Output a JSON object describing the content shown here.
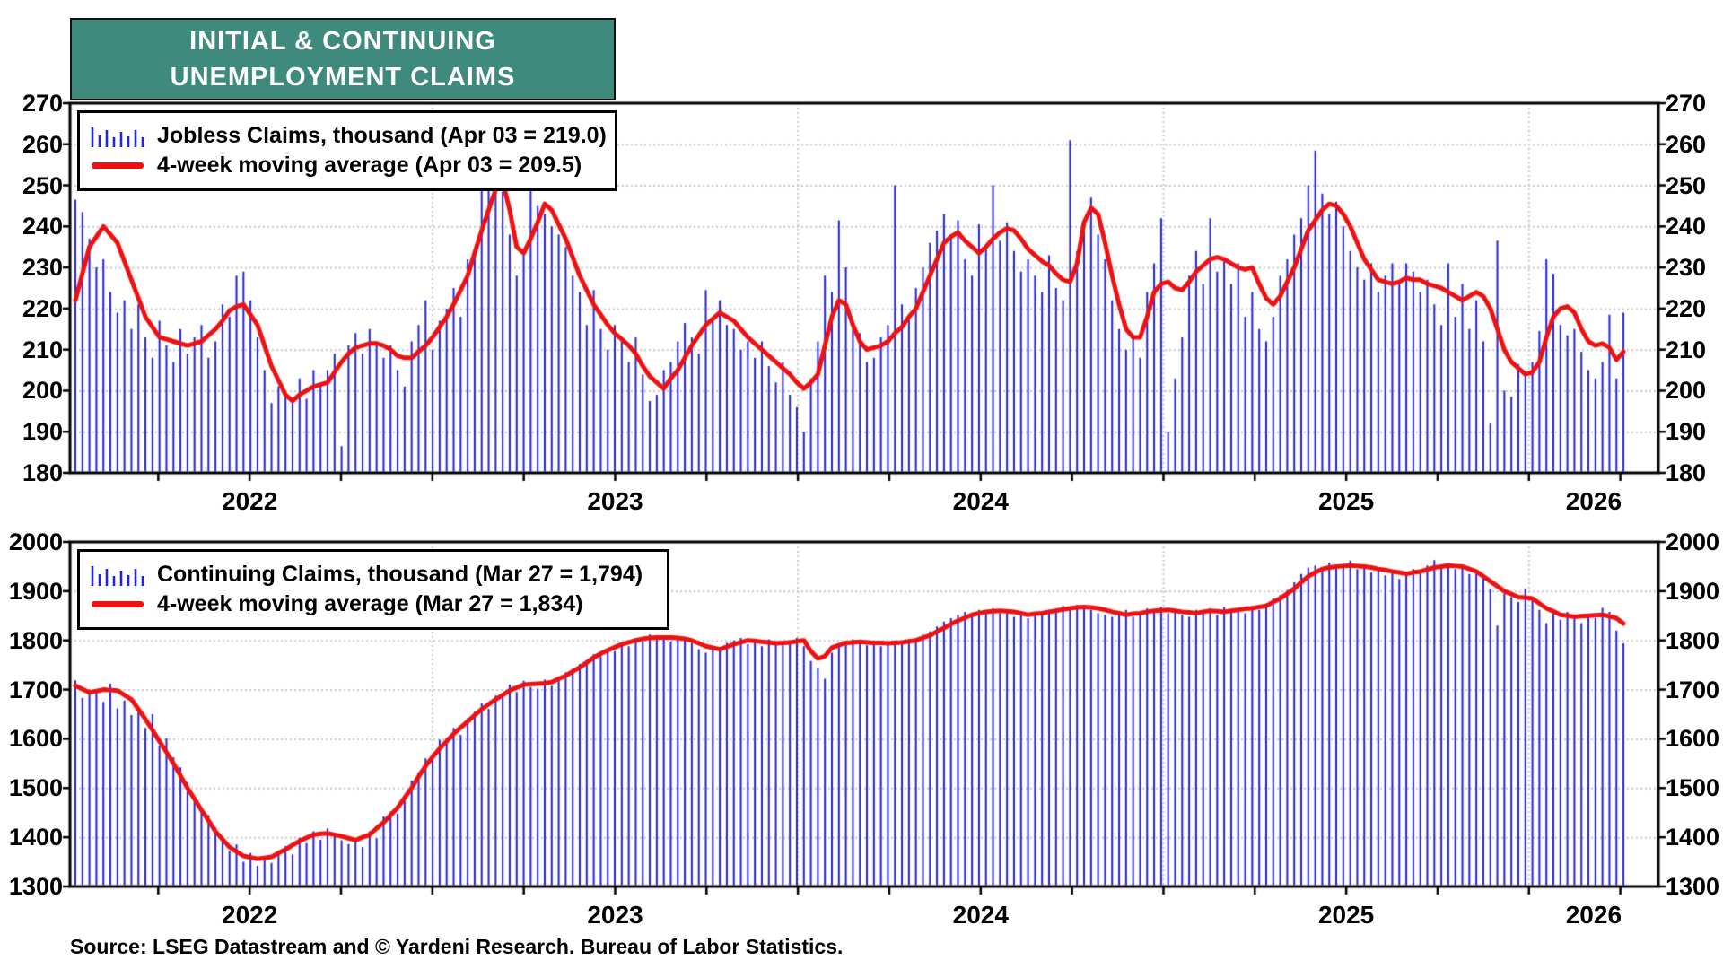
{
  "title": {
    "line1": "INITIAL & CONTINUING",
    "line2": "UNEMPLOYMENT CLAIMS"
  },
  "source": "Source: LSEG Datastream and © Yardeni Research. Bureau of Labor Statistics.",
  "colors": {
    "title_teal": "#3e8a7c",
    "bar_blue": "#2323d7",
    "line_red": "#ee1111",
    "grid_gray": "#c8c8c8",
    "frame_black": "#000000",
    "background": "#ffffff"
  },
  "x_axis": {
    "year_labels": [
      "2022",
      "2023",
      "2024",
      "2025",
      "2026"
    ],
    "minor_ticks": "quarterly",
    "start": "2022-01-07"
  },
  "chart_data": [
    {
      "type": "bar",
      "panel": "initial-jobless-claims",
      "frequency": "weekly",
      "x_start": "2022-01-07",
      "x_end": "2026-04-03",
      "ylim": [
        180,
        270
      ],
      "ytick_step": 10,
      "grid": "dotted",
      "legend_position": "top-left",
      "series": [
        {
          "name": "Jobless Claims, thousand (Apr 03 = 219.0)",
          "type": "bar",
          "latest_label": "Apr 03",
          "latest_value": 219.0,
          "values": [
            246.5,
            243.5,
            237,
            230,
            232,
            224,
            219,
            222,
            215,
            221,
            213,
            208,
            217,
            211,
            207,
            215,
            209,
            213,
            216,
            208,
            212,
            221,
            218,
            228,
            229,
            222,
            213,
            205,
            197,
            201,
            199,
            197,
            203,
            198,
            205,
            201,
            205,
            209,
            186.5,
            211,
            214,
            209,
            215,
            212,
            208,
            211,
            205,
            201,
            212,
            216,
            222,
            210,
            217,
            220,
            225,
            218,
            232,
            234,
            255,
            252,
            250,
            248.5,
            238,
            228,
            233.5,
            257.5,
            245,
            243,
            240,
            238,
            235,
            228,
            224,
            216,
            224.5,
            215,
            210,
            216,
            212,
            207,
            213,
            204,
            197.5,
            199,
            205,
            207,
            212,
            216.5,
            213,
            209,
            224.5,
            218,
            222,
            216,
            215,
            210,
            212,
            208,
            212,
            206,
            202,
            207,
            199,
            196,
            190,
            203,
            212,
            228,
            224,
            241.5,
            230,
            216,
            214,
            207,
            208,
            213,
            216,
            250,
            221,
            218,
            225,
            230,
            236,
            239,
            243,
            238,
            241.5,
            232,
            228,
            240.5,
            235,
            250,
            236.5,
            241,
            234,
            229,
            232,
            228,
            224,
            233,
            225,
            222,
            261,
            234,
            240.5,
            247,
            238,
            232,
            222,
            215,
            210,
            213.5,
            208,
            224,
            231,
            242,
            190,
            203,
            213,
            228,
            234,
            226,
            242,
            229,
            232,
            226,
            231,
            218,
            224,
            215,
            212,
            218,
            228,
            232,
            238,
            242,
            250,
            258.5,
            248,
            243,
            246,
            240,
            234,
            230,
            227,
            231,
            224,
            228,
            231,
            226,
            231,
            229,
            224,
            227,
            221,
            216,
            231,
            218,
            226,
            215,
            222,
            212,
            192,
            236.5,
            200,
            198.5,
            206.5,
            204,
            207,
            214.5,
            232,
            228.5,
            216,
            213.5,
            215,
            209.5,
            205,
            203,
            207,
            218.5,
            203,
            219
          ]
        },
        {
          "name": "4-week moving average (Apr 03 = 209.5)",
          "type": "line",
          "latest_label": "Apr 03",
          "latest_value": 209.5,
          "values": [
            222,
            228.5,
            235,
            237.5,
            240,
            238,
            236,
            231.5,
            227,
            222.5,
            218,
            215.5,
            213,
            212.5,
            212,
            211.5,
            211,
            211.5,
            212,
            213.5,
            215,
            217,
            219.5,
            220.5,
            221,
            218.5,
            216,
            211,
            206,
            202.5,
            199,
            197.5,
            199,
            200,
            201,
            201.5,
            202,
            204.5,
            207,
            209,
            210.5,
            211,
            211.5,
            211.5,
            211,
            210,
            208.5,
            208,
            208,
            209.5,
            211,
            213,
            215.5,
            218,
            221,
            224.5,
            228,
            233.5,
            239,
            244,
            249,
            251,
            244,
            235,
            233.5,
            237,
            241,
            245.5,
            244,
            240.5,
            237,
            232.5,
            228,
            224.5,
            221,
            218.5,
            216,
            214,
            212.5,
            211,
            209,
            206,
            203.5,
            202,
            200.5,
            203,
            205,
            208,
            211,
            213.5,
            216,
            217.5,
            219,
            218,
            217,
            215,
            213,
            211.5,
            210,
            208.5,
            207,
            205.5,
            204,
            202,
            200.5,
            202,
            204,
            211,
            218,
            222,
            221,
            216,
            212,
            210,
            210.5,
            211,
            212,
            214,
            215.5,
            218,
            220,
            224,
            228,
            232,
            236,
            237.5,
            238.5,
            236.5,
            235,
            233.5,
            235,
            237,
            238.5,
            239.5,
            239,
            237,
            234.5,
            233,
            231.5,
            230.5,
            228.5,
            227,
            226.5,
            231,
            241,
            244.5,
            243,
            236,
            228,
            221,
            215,
            213,
            213,
            218,
            224,
            226,
            226.5,
            225,
            224.5,
            226.5,
            229,
            230.5,
            232,
            232.5,
            232,
            231,
            230,
            229.5,
            230,
            226,
            222.5,
            221,
            223,
            226.5,
            230,
            234.5,
            239,
            241.5,
            244,
            245.5,
            245,
            243,
            240,
            236,
            232,
            229.5,
            227,
            226.5,
            226,
            226.5,
            227.5,
            227,
            227,
            226,
            225.5,
            225,
            224,
            223,
            222,
            223,
            224,
            223,
            220,
            215,
            210,
            207,
            205.5,
            204,
            204.5,
            207,
            213,
            218,
            220,
            220.5,
            219,
            215,
            212,
            211,
            211.5,
            210.5,
            207.5,
            209.5
          ]
        }
      ]
    },
    {
      "type": "bar",
      "panel": "continuing-claims",
      "frequency": "weekly",
      "x_start": "2022-01-07",
      "x_end": "2026-03-27",
      "ylim": [
        1300,
        2000
      ],
      "ytick_step": 100,
      "grid": "dotted",
      "legend_position": "top-left",
      "series": [
        {
          "name": "Continuing Claims, thousand (Mar 27 = 1,794)",
          "type": "bar",
          "latest_label": "Mar 27",
          "latest_value": 1794,
          "values": [
            1719,
            1683,
            1700,
            1697,
            1675,
            1712,
            1662,
            1678,
            1648,
            1656,
            1622,
            1650,
            1586,
            1601,
            1562,
            1542,
            1512,
            1478,
            1462,
            1445,
            1420,
            1398,
            1372,
            1385,
            1350,
            1368,
            1342,
            1361,
            1348,
            1373,
            1382,
            1365,
            1399,
            1388,
            1412,
            1395,
            1418,
            1402,
            1394,
            1386,
            1390,
            1380,
            1412,
            1398,
            1442,
            1452,
            1448,
            1480,
            1515,
            1532,
            1560,
            1562,
            1598,
            1602,
            1622,
            1608,
            1642,
            1655,
            1672,
            1661,
            1688,
            1692,
            1710,
            1695,
            1718,
            1705,
            1702,
            1720,
            1708,
            1725,
            1735,
            1742,
            1752,
            1758,
            1772,
            1768,
            1785,
            1778,
            1795,
            1788,
            1805,
            1798,
            1812,
            1802,
            1810,
            1798,
            1808,
            1802,
            1795,
            1782,
            1775,
            1785,
            1778,
            1795,
            1800,
            1805,
            1792,
            1796,
            1788,
            1802,
            1798,
            1792,
            1800,
            1805,
            1788,
            1758,
            1745,
            1722,
            1775,
            1792,
            1798,
            1802,
            1795,
            1790,
            1798,
            1788,
            1795,
            1800,
            1792,
            1802,
            1805,
            1812,
            1818,
            1828,
            1838,
            1845,
            1852,
            1858,
            1855,
            1862,
            1858,
            1865,
            1855,
            1862,
            1848,
            1858,
            1845,
            1852,
            1858,
            1862,
            1865,
            1870,
            1862,
            1872,
            1865,
            1862,
            1855,
            1852,
            1848,
            1858,
            1862,
            1848,
            1855,
            1865,
            1858,
            1868,
            1855,
            1862,
            1852,
            1848,
            1862,
            1855,
            1865,
            1852,
            1868,
            1858,
            1862,
            1855,
            1870,
            1862,
            1875,
            1885,
            1892,
            1902,
            1918,
            1935,
            1948,
            1952,
            1945,
            1958,
            1948,
            1955,
            1962,
            1945,
            1952,
            1938,
            1945,
            1932,
            1938,
            1925,
            1932,
            1945,
            1938,
            1952,
            1963,
            1948,
            1955,
            1945,
            1952,
            1935,
            1942,
            1928,
            1905,
            1830,
            1895,
            1888,
            1878,
            1905,
            1882,
            1862,
            1835,
            1855,
            1842,
            1858,
            1848,
            1835,
            1852,
            1845,
            1866,
            1858,
            1820,
            1794
          ]
        },
        {
          "name": "4-week moving average (Mar 27 = 1,834)",
          "type": "line",
          "latest_label": "Mar 27",
          "latest_value": 1834,
          "values": [
            1708,
            1701,
            1694,
            1697,
            1700,
            1699,
            1698,
            1689,
            1680,
            1660,
            1640,
            1618,
            1595,
            1573,
            1550,
            1525,
            1500,
            1478,
            1455,
            1434,
            1412,
            1396,
            1380,
            1371,
            1362,
            1359,
            1356,
            1358,
            1360,
            1368,
            1375,
            1384,
            1392,
            1399,
            1405,
            1407,
            1408,
            1405,
            1402,
            1398,
            1394,
            1400,
            1405,
            1418,
            1430,
            1445,
            1460,
            1480,
            1500,
            1523,
            1545,
            1563,
            1580,
            1595,
            1610,
            1623,
            1635,
            1648,
            1660,
            1670,
            1680,
            1689,
            1698,
            1704,
            1710,
            1711,
            1712,
            1713,
            1715,
            1722,
            1728,
            1737,
            1745,
            1755,
            1765,
            1773,
            1780,
            1786,
            1792,
            1796,
            1800,
            1803,
            1805,
            1806,
            1806,
            1806,
            1805,
            1803,
            1800,
            1794,
            1788,
            1785,
            1782,
            1787,
            1792,
            1796,
            1800,
            1799,
            1797,
            1796,
            1794,
            1795,
            1796,
            1798,
            1800,
            1778,
            1763,
            1768,
            1785,
            1790,
            1795,
            1796,
            1797,
            1796,
            1795,
            1795,
            1794,
            1795,
            1796,
            1798,
            1800,
            1805,
            1810,
            1818,
            1825,
            1833,
            1840,
            1846,
            1852,
            1855,
            1858,
            1859,
            1860,
            1859,
            1858,
            1855,
            1852,
            1854,
            1855,
            1858,
            1860,
            1863,
            1865,
            1867,
            1868,
            1867,
            1865,
            1862,
            1858,
            1855,
            1852,
            1854,
            1855,
            1858,
            1860,
            1861,
            1862,
            1860,
            1858,
            1857,
            1855,
            1858,
            1860,
            1859,
            1858,
            1860,
            1862,
            1864,
            1865,
            1868,
            1870,
            1878,
            1885,
            1895,
            1905,
            1918,
            1930,
            1938,
            1945,
            1948,
            1950,
            1951,
            1952,
            1951,
            1950,
            1948,
            1945,
            1943,
            1940,
            1938,
            1935,
            1938,
            1940,
            1944,
            1948,
            1950,
            1952,
            1951,
            1950,
            1945,
            1940,
            1930,
            1920,
            1910,
            1900,
            1894,
            1888,
            1887,
            1885,
            1875,
            1865,
            1859,
            1852,
            1850,
            1848,
            1849,
            1850,
            1851,
            1852,
            1849,
            1845,
            1834
          ]
        }
      ]
    }
  ]
}
